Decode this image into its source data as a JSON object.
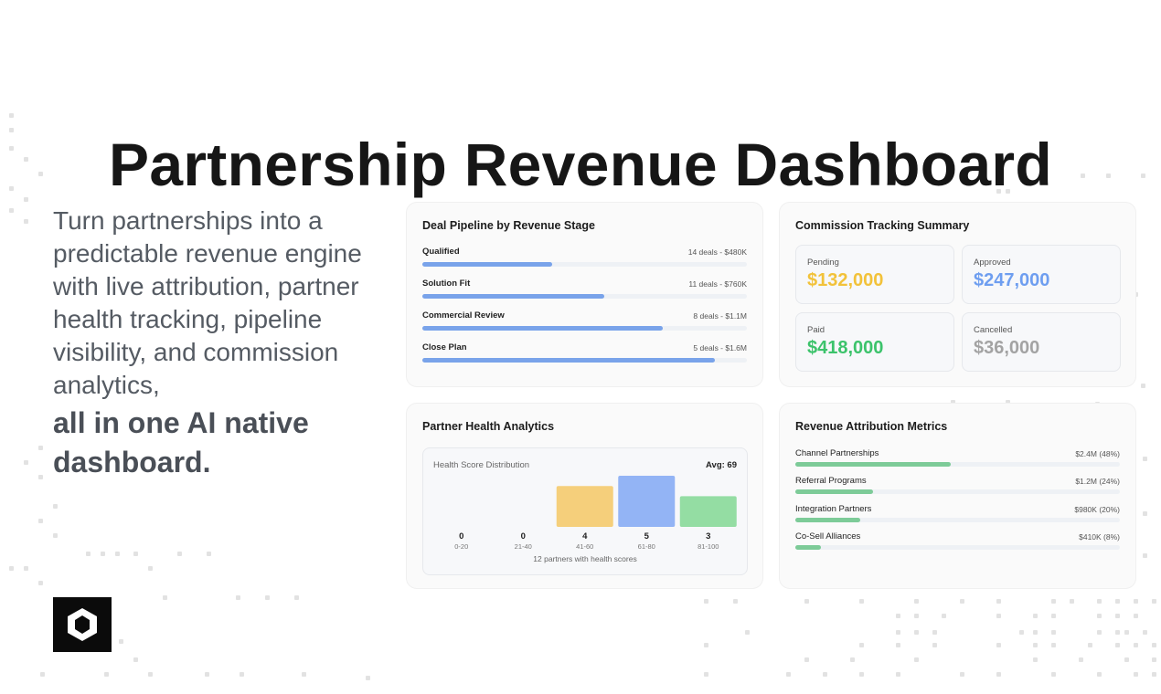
{
  "title": "Partnership Revenue Dashboard",
  "tagline": {
    "text": "Turn partnerships into a predictable revenue engine with live attribution, partner health tracking, pipeline visibility, and commission analytics,",
    "strong": "all in one AI native dashboard."
  },
  "logo": {
    "icon": "hexagon-cube-icon"
  },
  "pipeline": {
    "title": "Deal Pipeline by Revenue Stage",
    "accent": "#79a3ea",
    "stages": [
      {
        "label": "Qualified",
        "value": "14 deals - $480K",
        "fill": 0.4
      },
      {
        "label": "Solution Fit",
        "value": "11 deals - $760K",
        "fill": 0.56
      },
      {
        "label": "Commercial Review",
        "value": "8 deals - $1.1M",
        "fill": 0.74
      },
      {
        "label": "Close Plan",
        "value": "5 deals - $1.6M",
        "fill": 0.9
      }
    ]
  },
  "commission": {
    "title": "Commission Tracking Summary",
    "items": [
      {
        "label": "Pending",
        "value": "$132,000",
        "color": "#f2c23a"
      },
      {
        "label": "Approved",
        "value": "$247,000",
        "color": "#6e9ef0"
      },
      {
        "label": "Paid",
        "value": "$418,000",
        "color": "#3cc36b"
      },
      {
        "label": "Cancelled",
        "value": "$36,000",
        "color": "#a3a3a3"
      }
    ]
  },
  "health": {
    "title": "Partner Health Analytics",
    "subtitle": "Health Score Distribution",
    "avg": "Avg: 69",
    "footer": "12 partners with health scores"
  },
  "chart_data": {
    "type": "bar",
    "categories": [
      "0-20",
      "21-40",
      "41-60",
      "61-80",
      "81-100"
    ],
    "values": [
      0,
      0,
      4,
      5,
      3
    ],
    "colors": [
      "#d9d9d9",
      "#d9d9d9",
      "#f5cf7b",
      "#93b4f5",
      "#94dda3"
    ],
    "title": "Health Score Distribution",
    "ylim": [
      0,
      5
    ]
  },
  "attribution": {
    "title": "Revenue Attribution Metrics",
    "accent": "#7dcb98",
    "items": [
      {
        "label": "Channel Partnerships",
        "value": "$2.4M (48%)",
        "fill": 0.48
      },
      {
        "label": "Referral Programs",
        "value": "$1.2M (24%)",
        "fill": 0.24
      },
      {
        "label": "Integration Partners",
        "value": "$980K (20%)",
        "fill": 0.2
      },
      {
        "label": "Co-Sell Alliances",
        "value": "$410K (8%)",
        "fill": 0.08
      }
    ]
  }
}
